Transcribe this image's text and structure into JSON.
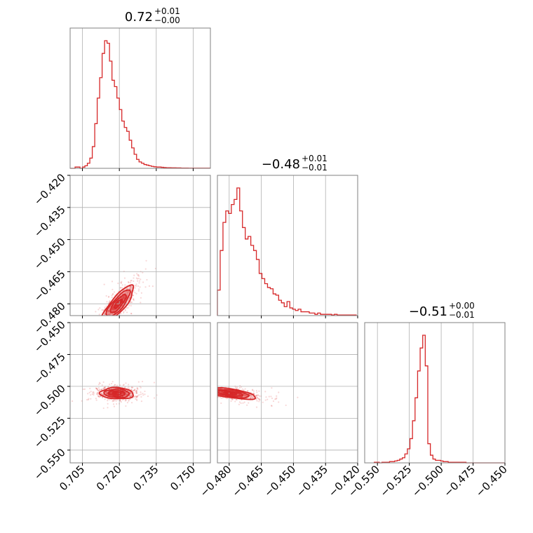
{
  "chart_data": {
    "type": "corner",
    "color": "#d62728",
    "parameters": [
      {
        "range": [
          0.7,
          0.757
        ],
        "ticks": [
          "0.705",
          "0.720",
          "0.735",
          "0.750"
        ],
        "tick_values": [
          0.705,
          0.72,
          0.735,
          0.75
        ],
        "title_median": "0.72",
        "title_plus": "+0.01",
        "title_minus": "−0.00",
        "hist_bin_edges_start": 0.7,
        "hist_bin_width": 0.001,
        "hist": [
          0,
          0,
          0.01,
          0.01,
          0,
          0.01,
          0.02,
          0.04,
          0.08,
          0.17,
          0.35,
          0.55,
          0.71,
          0.9,
          1.0,
          0.98,
          0.84,
          0.69,
          0.64,
          0.55,
          0.46,
          0.37,
          0.32,
          0.29,
          0.22,
          0.16,
          0.11,
          0.07,
          0.05,
          0.04,
          0.03,
          0.025,
          0.02,
          0.015,
          0.012,
          0.01,
          0.01,
          0.008,
          0.006,
          0.005,
          0.005,
          0.004,
          0.004,
          0.003,
          0.003,
          0.002,
          0.002,
          0.002,
          0.001,
          0.001,
          0.001,
          0.001,
          0.001,
          0.001,
          0.001,
          0.001,
          0.001
        ]
      },
      {
        "range": [
          -0.4855,
          -0.42
        ],
        "ticks": [
          "−0.480",
          "−0.465",
          "−0.450",
          "−0.435",
          "−0.420"
        ],
        "tick_values": [
          -0.48,
          -0.465,
          -0.45,
          -0.435,
          -0.42
        ],
        "left_ticks": [
          "−0.420",
          "−0.435",
          "−0.450",
          "−0.465",
          "−0.480"
        ],
        "title_median": "−0.48",
        "title_plus": "+0.01",
        "title_minus": "−0.01",
        "hist_bin_edges_start": -0.4855,
        "hist_bin_width": 0.0013,
        "hist": [
          0.2,
          0.51,
          0.73,
          0.82,
          0.8,
          0.87,
          0.91,
          1.0,
          0.82,
          0.69,
          0.6,
          0.62,
          0.55,
          0.51,
          0.44,
          0.33,
          0.29,
          0.25,
          0.22,
          0.21,
          0.17,
          0.16,
          0.12,
          0.1,
          0.07,
          0.11,
          0.06,
          0.05,
          0.04,
          0.05,
          0.03,
          0.03,
          0.03,
          0.02,
          0.02,
          0.01,
          0.02,
          0.01,
          0.01,
          0.01,
          0.01,
          0.005,
          0.01,
          0.005,
          0.005,
          0.005,
          0.005,
          0.005,
          0.005,
          0.005
        ]
      },
      {
        "range": [
          -0.56,
          -0.45
        ],
        "ticks": [
          "−0.550",
          "−0.525",
          "−0.500",
          "−0.475",
          "−0.450"
        ],
        "tick_values": [
          -0.55,
          -0.525,
          -0.5,
          -0.475,
          -0.45
        ],
        "left_ticks": [
          "−0.450",
          "−0.475",
          "−0.500",
          "−0.525",
          "−0.550"
        ],
        "title_median": "−0.51",
        "title_plus": "+0.00",
        "title_minus": "−0.01",
        "hist_bin_edges_start": -0.5525,
        "hist_bin_width": 0.002,
        "hist": [
          0.005,
          0.005,
          0,
          0.005,
          0.005,
          0.005,
          0.01,
          0.01,
          0.015,
          0.02,
          0.03,
          0.04,
          0.07,
          0.11,
          0.19,
          0.33,
          0.51,
          0.72,
          0.9,
          1.0,
          0.76,
          0.15,
          0.06,
          0.03,
          0.02,
          0.02,
          0.015,
          0.01,
          0.01,
          0.005,
          0.005,
          0.005,
          0.005,
          0.005,
          0.005,
          0.005,
          0,
          0,
          0,
          0,
          0,
          0,
          0,
          0,
          0,
          0,
          0,
          0,
          0,
          0,
          0,
          0,
          0,
          0,
          0
        ]
      }
    ],
    "pairs": [
      {
        "x_param": 0,
        "y_param": 1,
        "mean": [
          0.7195,
          -0.48
        ],
        "sd": [
          0.0032,
          0.0042
        ],
        "corr": 0.82,
        "contour_sigmas": [
          0.5,
          1.0,
          1.5,
          2.0
        ]
      },
      {
        "x_param": 0,
        "y_param": 2,
        "mean": [
          0.719,
          -0.5055
        ],
        "sd": [
          0.0034,
          0.0022
        ],
        "corr": -0.1,
        "contour_sigmas": [
          0.5,
          1.0,
          1.5,
          2.0
        ]
      },
      {
        "x_param": 1,
        "y_param": 2,
        "mean": [
          -0.4795,
          -0.5055
        ],
        "sd": [
          0.006,
          0.0022
        ],
        "corr": -0.62,
        "contour_sigmas": [
          0.5,
          1.0,
          1.5,
          2.0
        ]
      }
    ],
    "grid": true
  }
}
